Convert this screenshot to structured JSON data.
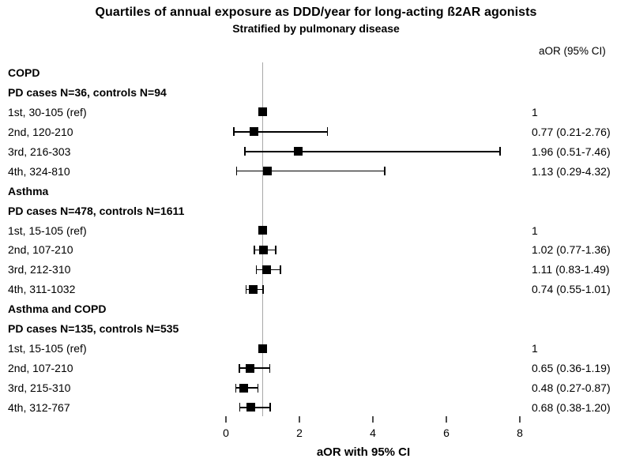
{
  "header": {
    "title": "Quartiles of annual exposure as DDD/year for long-acting ß2AR agonists",
    "subtitle": "Stratified by pulmonary disease",
    "column_header": "aOR (95% CI)"
  },
  "colors": {
    "background": "#ffffff",
    "text": "#000000",
    "marker": "#000000",
    "ci_line": "#000000",
    "reference_line": "#a9a9a9",
    "tick": "#4d4d4d"
  },
  "chart_data": {
    "type": "forest",
    "xlabel": "aOR with 95% CI",
    "x_ticks": [
      0,
      2,
      4,
      6,
      8
    ],
    "xlim": [
      0,
      8.5
    ],
    "reference_line_x": 1,
    "grid": false,
    "legend_position": "none",
    "value_column_header": "aOR (95% CI)",
    "groups": [
      {
        "name": "COPD",
        "subtitle": "PD cases N=36, controls N=94",
        "rows": [
          {
            "label": "1st, 30-105 (ref)",
            "aor": 1,
            "ci_low": null,
            "ci_high": null,
            "value_text": "1"
          },
          {
            "label": "2nd, 120-210",
            "aor": 0.77,
            "ci_low": 0.21,
            "ci_high": 2.76,
            "value_text": "0.77 (0.21-2.76)"
          },
          {
            "label": "3rd, 216-303",
            "aor": 1.96,
            "ci_low": 0.51,
            "ci_high": 7.46,
            "value_text": "1.96 (0.51-7.46)"
          },
          {
            "label": "4th, 324-810",
            "aor": 1.13,
            "ci_low": 0.29,
            "ci_high": 4.32,
            "value_text": "1.13 (0.29-4.32)"
          }
        ]
      },
      {
        "name": "Asthma",
        "subtitle": "PD cases N=478, controls N=1611",
        "rows": [
          {
            "label": "1st, 15-105 (ref)",
            "aor": 1,
            "ci_low": null,
            "ci_high": null,
            "value_text": "1"
          },
          {
            "label": "2nd, 107-210",
            "aor": 1.02,
            "ci_low": 0.77,
            "ci_high": 1.36,
            "value_text": "1.02 (0.77-1.36)"
          },
          {
            "label": "3rd, 212-310",
            "aor": 1.11,
            "ci_low": 0.83,
            "ci_high": 1.49,
            "value_text": "1.11 (0.83-1.49)"
          },
          {
            "label": "4th, 311-1032",
            "aor": 0.74,
            "ci_low": 0.55,
            "ci_high": 1.01,
            "value_text": "0.74 (0.55-1.01)"
          }
        ]
      },
      {
        "name": "Asthma and COPD",
        "subtitle": "PD cases N=135, controls N=535",
        "rows": [
          {
            "label": "1st, 15-105 (ref)",
            "aor": 1,
            "ci_low": null,
            "ci_high": null,
            "value_text": "1"
          },
          {
            "label": "2nd, 107-210",
            "aor": 0.65,
            "ci_low": 0.36,
            "ci_high": 1.19,
            "value_text": "0.65 (0.36-1.19)"
          },
          {
            "label": "3rd, 215-310",
            "aor": 0.48,
            "ci_low": 0.27,
            "ci_high": 0.87,
            "value_text": "0.48 (0.27-0.87)"
          },
          {
            "label": "4th, 312-767",
            "aor": 0.68,
            "ci_low": 0.38,
            "ci_high": 1.2,
            "value_text": "0.68 (0.38-1.20)"
          }
        ]
      }
    ]
  }
}
